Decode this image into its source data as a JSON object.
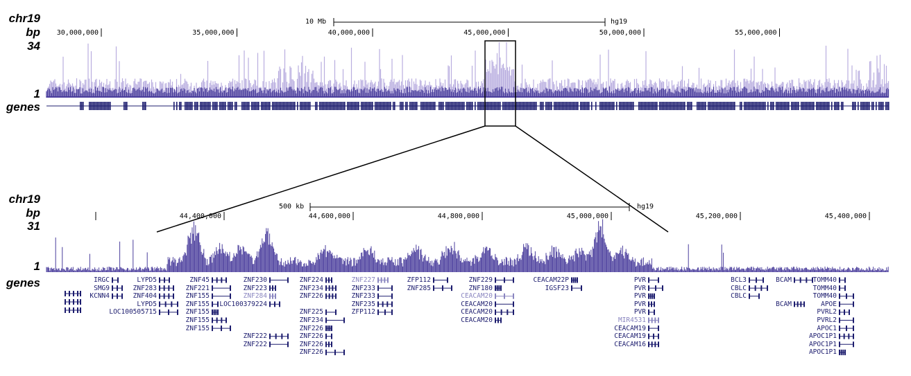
{
  "colors": {
    "track_dark": "#4a3d9c",
    "track_light": "#b9addf",
    "gene": "#1c1c6e",
    "gene_light": "#8a86c0"
  },
  "top": {
    "chrom": "chr19",
    "bp_label": "bp",
    "ymax": "34",
    "ymin": "1",
    "genes_label": "genes",
    "scale": {
      "label": "10 Mb",
      "assembly": "hg19"
    },
    "ticks": [
      {
        "label": "30,000,000",
        "pos": 30000000
      },
      {
        "label": "35,000,000",
        "pos": 35000000
      },
      {
        "label": "40,000,000",
        "pos": 40000000
      },
      {
        "label": "45,000,000",
        "pos": 45000000
      },
      {
        "label": "50,000,000",
        "pos": 50000000
      },
      {
        "label": "55,000,000",
        "pos": 55000000
      }
    ]
  },
  "bottom": {
    "chrom": "chr19",
    "bp_label": "bp",
    "ymax": "31",
    "ymin": "1",
    "genes_label": "genes",
    "scale": {
      "label": "500 kb",
      "assembly": "hg19"
    },
    "ticks": [
      {
        "label": "44,400,000",
        "pos": 44400000
      },
      {
        "label": "44,600,000",
        "pos": 44600000
      },
      {
        "label": "44,800,000",
        "pos": 44800000
      },
      {
        "label": "45,000,000",
        "pos": 45000000
      },
      {
        "label": "45,200,000",
        "pos": 45200000
      },
      {
        "label": "45,400,000",
        "pos": 45400000
      }
    ],
    "genes": [
      {
        "name": "IRGC",
        "col": 0,
        "row": 0
      },
      {
        "name": "LYPD5",
        "col": 1,
        "row": 0
      },
      {
        "name": "ZNF45",
        "col": 2,
        "row": 0
      },
      {
        "name": "ZNF230",
        "col": 3,
        "row": 0
      },
      {
        "name": "ZNF224",
        "col": 4,
        "row": 0
      },
      {
        "name": "ZNF227",
        "col": 5,
        "row": 0,
        "light": true
      },
      {
        "name": "ZFP112",
        "col": 6,
        "row": 0
      },
      {
        "name": "ZNF229",
        "col": 7,
        "row": 0
      },
      {
        "name": "CEACAM22P",
        "col": 8,
        "row": 0
      },
      {
        "name": "PVR",
        "col": 9,
        "row": 0
      },
      {
        "name": "BCL3",
        "col": 10,
        "row": 0
      },
      {
        "name": "BCAM",
        "col": 11,
        "row": 0
      },
      {
        "name": "TOMM40",
        "col": 12,
        "row": 0
      },
      {
        "name": "SMG9",
        "col": 0,
        "row": 1
      },
      {
        "name": "ZNF283",
        "col": 1,
        "row": 1
      },
      {
        "name": "ZNF221",
        "col": 2,
        "row": 1
      },
      {
        "name": "ZNF223",
        "col": 3,
        "row": 1
      },
      {
        "name": "ZNF234",
        "col": 4,
        "row": 1
      },
      {
        "name": "ZNF233",
        "col": 5,
        "row": 1
      },
      {
        "name": "ZNF285",
        "col": 6,
        "row": 1
      },
      {
        "name": "ZNF180",
        "col": 7,
        "row": 1
      },
      {
        "name": "IGSF23",
        "col": 8,
        "row": 1
      },
      {
        "name": "PVR",
        "col": 9,
        "row": 1
      },
      {
        "name": "CBLC",
        "col": 10,
        "row": 1
      },
      {
        "name": "TOMM40",
        "col": 12,
        "row": 1
      },
      {
        "name": "KCNN4",
        "col": 0,
        "row": 2
      },
      {
        "name": "ZNF404",
        "col": 1,
        "row": 2
      },
      {
        "name": "ZNF155",
        "col": 2,
        "row": 2
      },
      {
        "name": "ZNF284",
        "col": 3,
        "row": 2,
        "light": true
      },
      {
        "name": "ZNF226",
        "col": 4,
        "row": 2
      },
      {
        "name": "ZNF233",
        "col": 5,
        "row": 2
      },
      {
        "name": "CEACAM20",
        "col": 7,
        "row": 2,
        "light": true
      },
      {
        "name": "PVR",
        "col": 9,
        "row": 2
      },
      {
        "name": "CBLC",
        "col": 10,
        "row": 2
      },
      {
        "name": "TOMM40",
        "col": 12,
        "row": 2
      },
      {
        "name": "LYPD5",
        "col": 1,
        "row": 3
      },
      {
        "name": "ZNF155",
        "col": 2,
        "row": 3
      },
      {
        "name": "LOC100379224",
        "col": 3,
        "row": 3
      },
      {
        "name": "ZNF235",
        "col": 5,
        "row": 3
      },
      {
        "name": "CEACAM20",
        "col": 7,
        "row": 3
      },
      {
        "name": "PVR",
        "col": 9,
        "row": 3
      },
      {
        "name": "BCAM",
        "col": 11,
        "row": 3
      },
      {
        "name": "APOE",
        "col": 12,
        "row": 3
      },
      {
        "name": "LOC100505715",
        "col": 1,
        "row": 4
      },
      {
        "name": "ZNF155",
        "col": 2,
        "row": 4
      },
      {
        "name": "ZNF225",
        "col": 4,
        "row": 4
      },
      {
        "name": "ZFP112",
        "col": 5,
        "row": 4
      },
      {
        "name": "CEACAM20",
        "col": 7,
        "row": 4
      },
      {
        "name": "PVR",
        "col": 9,
        "row": 4
      },
      {
        "name": "PVRL2",
        "col": 12,
        "row": 4
      },
      {
        "name": "ZNF155",
        "col": 2,
        "row": 5
      },
      {
        "name": "ZNF234",
        "col": 4,
        "row": 5
      },
      {
        "name": "CEACAM20",
        "col": 7,
        "row": 5
      },
      {
        "name": "MIR4531",
        "col": 9,
        "row": 5,
        "light": true
      },
      {
        "name": "PVRL2",
        "col": 12,
        "row": 5
      },
      {
        "name": "ZNF155",
        "col": 2,
        "row": 6
      },
      {
        "name": "ZNF226",
        "col": 4,
        "row": 6
      },
      {
        "name": "CEACAM19",
        "col": 9,
        "row": 6
      },
      {
        "name": "APOC1",
        "col": 12,
        "row": 6
      },
      {
        "name": "ZNF222",
        "col": 3,
        "row": 7
      },
      {
        "name": "ZNF226",
        "col": 4,
        "row": 7
      },
      {
        "name": "CEACAM19",
        "col": 9,
        "row": 7
      },
      {
        "name": "APOC1P1",
        "col": 12,
        "row": 7
      },
      {
        "name": "ZNF222",
        "col": 3,
        "row": 8
      },
      {
        "name": "ZNF226",
        "col": 4,
        "row": 8
      },
      {
        "name": "CEACAM16",
        "col": 9,
        "row": 8
      },
      {
        "name": "APOC1P1",
        "col": 12,
        "row": 8
      },
      {
        "name": "ZNF226",
        "col": 4,
        "row": 9
      },
      {
        "name": "APOC1P1",
        "col": 12,
        "row": 9
      }
    ]
  }
}
